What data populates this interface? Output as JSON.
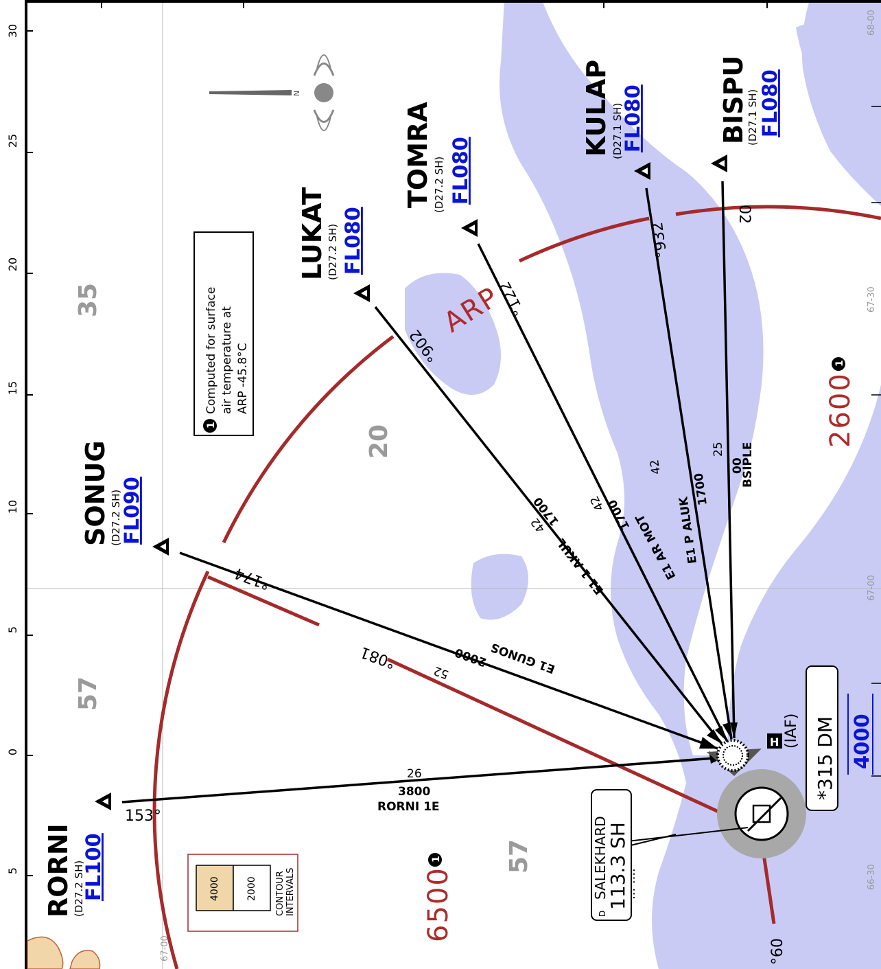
{
  "waypoints": [
    {
      "name": "RORNI",
      "dist": "(D27.2 SH)",
      "fl": "FL100"
    },
    {
      "name": "SONUG",
      "dist": "(D27.2 SH)",
      "fl": "FL090"
    },
    {
      "name": "LUKAT",
      "dist": "(D27.2 SH)",
      "fl": "FL080"
    },
    {
      "name": "TOMRA",
      "dist": "(D27.2 SH)",
      "fl": "FL080"
    },
    {
      "name": "KULAP",
      "dist": "(D27.1 SH)",
      "fl": "FL080"
    },
    {
      "name": "BISPU",
      "dist": "(D27.1 SH)",
      "fl": "FL080"
    }
  ],
  "routes": {
    "rorni": {
      "name": "RORNI 1E",
      "alt": "3800",
      "dist": "26",
      "course": "153°"
    },
    "sonug": {
      "name": "E1 GUNOS",
      "alt": "2000",
      "dist": "52",
      "course": "°174"
    },
    "lukat": {
      "name": "E1 1 AKUL",
      "alt": "1700",
      "dist": "42",
      "course": "°902"
    },
    "tomra": {
      "name": "E1 AR MOT",
      "alt": "1700",
      "dist": "42",
      "course": "°122"
    },
    "kulap": {
      "name": "E1 P ALUK",
      "alt": "1700",
      "dist": "42",
      "course": "°932"
    },
    "bispu": {
      "name": "BSIPLE",
      "alt": "00",
      "dist": "25",
      "course": "02"
    }
  },
  "red_radial": {
    "label": "°081"
  },
  "red_bottom": {
    "label": "°60"
  },
  "arp_label": "ARP",
  "iaf": {
    "label": "(IAF)",
    "id": "*315 DM",
    "alt": "4000",
    "holding_icon": "H"
  },
  "navaid": {
    "name": "SALEKHARD",
    "freq": "113.3 SH",
    "morse": "... .... ",
    "type": "D"
  },
  "msa_values": {
    "south": "6500",
    "north": "2600",
    "note_marker": "1"
  },
  "note": {
    "marker": "1",
    "lines": [
      "Computed for surface",
      "air temperature at",
      "ARP -45.8°C"
    ]
  },
  "contour_values": {
    "c1": "35",
    "c2": "20",
    "c3": "57",
    "c4": "57"
  },
  "contour_legend": {
    "hi": "4000",
    "lo": "2000",
    "caption": [
      "CONTOUR",
      "INTERVALS"
    ]
  },
  "ruler_labels": [
    "30",
    "25",
    "20",
    "15",
    "10",
    "5",
    "0",
    "5"
  ],
  "grid_labels": {
    "e1": "68-00",
    "e2": "67-30",
    "e3": "67-00",
    "e4": "66-30",
    "s1": "67-00"
  },
  "colors": {
    "water": "#c9cbf5",
    "msa": "#a52a2a",
    "fl": "#0a14d8",
    "grid": "#9a9a9a",
    "terrain": "#f0d6a8"
  },
  "icons": [
    "north-arrow-icon",
    "waypoint-triangle-icon",
    "vor-dme-icon",
    "holding-icon"
  ]
}
